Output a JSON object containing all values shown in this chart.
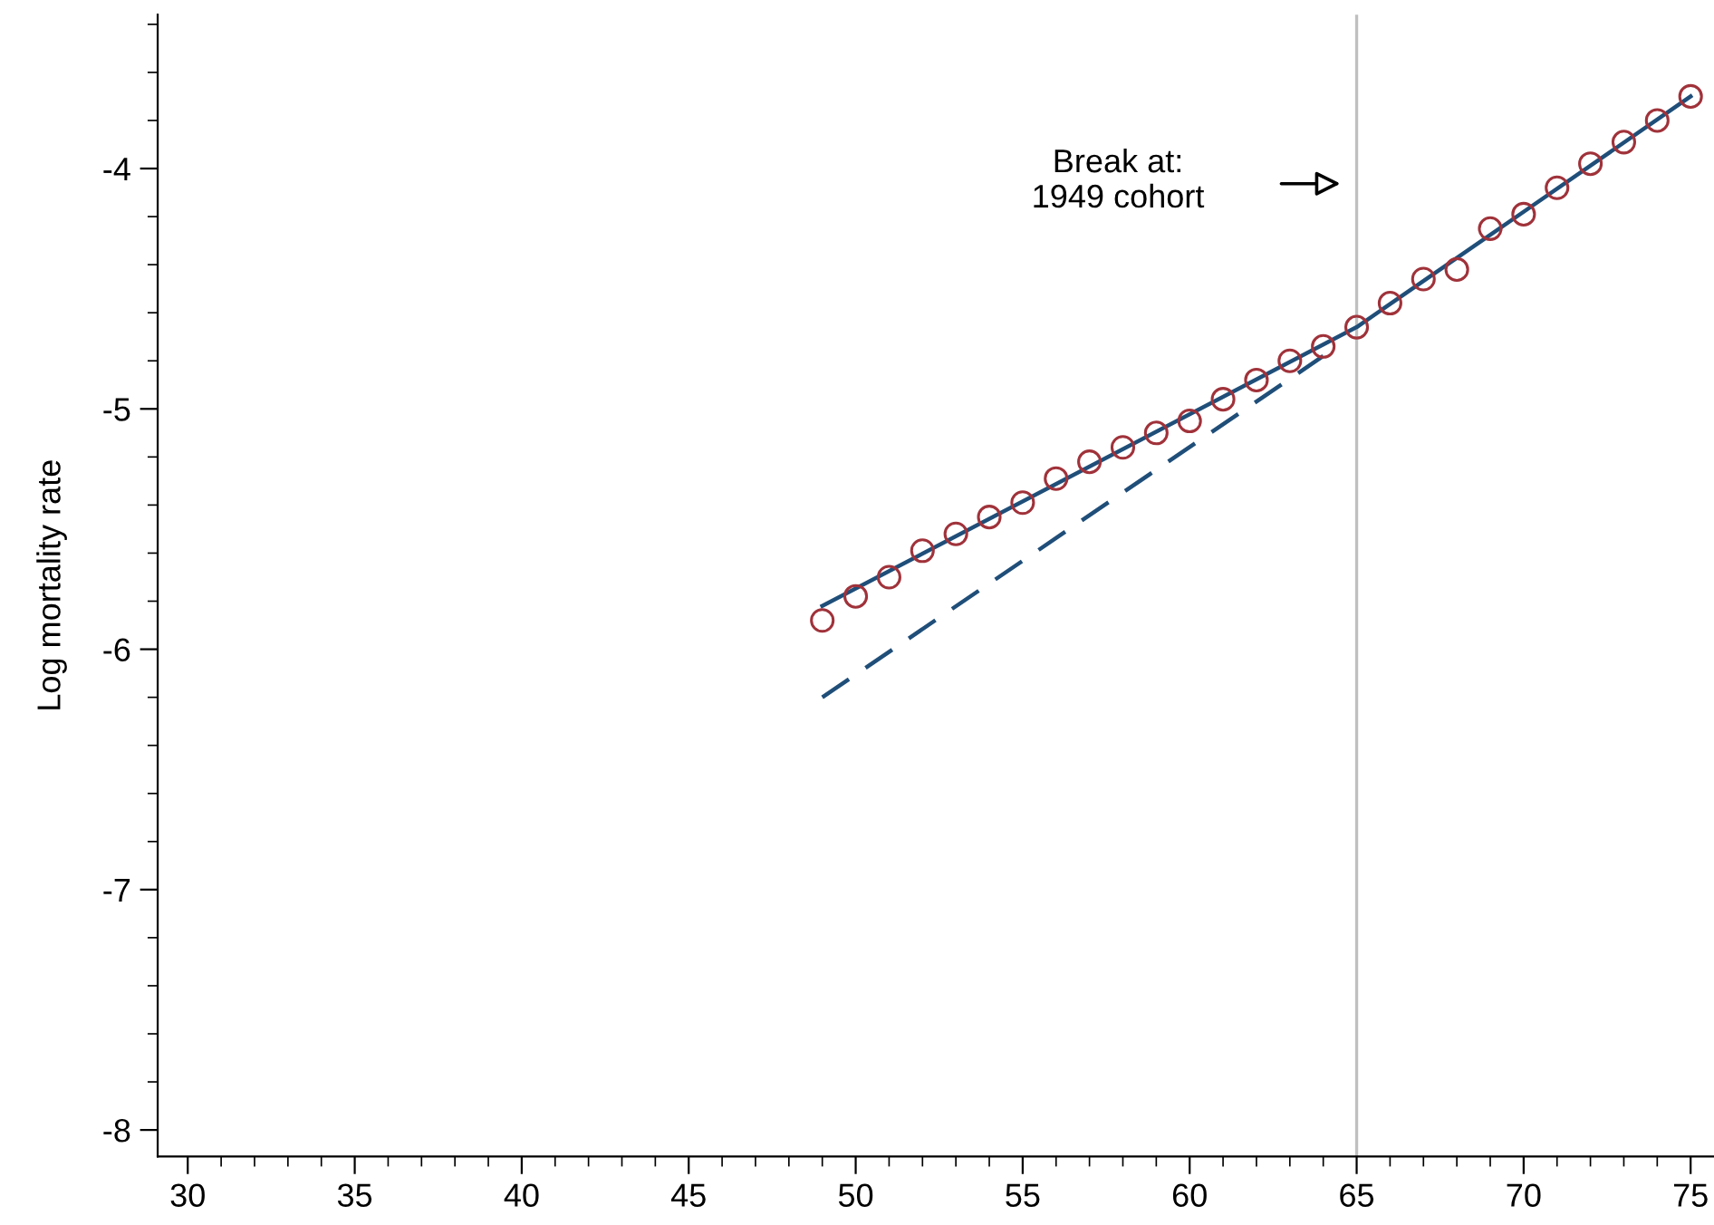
{
  "chart_data": {
    "type": "scatter",
    "ylabel": "Log mortality rate",
    "xlim": [
      29.1,
      75.7
    ],
    "ylim": [
      -8.11,
      -3.36
    ],
    "xticks": [
      30,
      35,
      40,
      45,
      50,
      55,
      60,
      65,
      70,
      75
    ],
    "yticks": [
      {
        "value": -8,
        "label": "-8"
      },
      {
        "value": -7,
        "label": "-7"
      },
      {
        "value": -6,
        "label": "-6"
      },
      {
        "value": -5,
        "label": "-5"
      },
      {
        "value": -4,
        "label": "-4"
      }
    ],
    "grid": false,
    "legend": false,
    "series": [
      {
        "color": "#a0323a",
        "marker": "circle",
        "x": [
          49,
          50,
          51,
          52,
          53,
          54,
          55,
          56,
          57,
          58,
          59,
          60,
          61,
          62,
          63,
          64,
          65,
          66,
          67,
          68,
          69,
          70,
          71,
          72,
          73,
          74,
          75
        ],
        "values": [
          -5.88,
          -5.78,
          -5.7,
          -5.59,
          -5.52,
          -5.45,
          -5.39,
          -5.29,
          -5.22,
          -5.16,
          -5.1,
          -5.05,
          -4.96,
          -4.88,
          -4.8,
          -4.74,
          -4.66,
          -4.56,
          -4.46,
          -4.42,
          -4.25,
          -4.19,
          -4.08,
          -3.98,
          -3.89,
          -3.8,
          -3.7
        ]
      },
      {
        "type": "line",
        "color": "#1f4e79",
        "line_style": "solid",
        "x": [
          49,
          65,
          70,
          75
        ],
        "values": [
          -5.82,
          -4.66,
          -4.18,
          -3.7
        ]
      },
      {
        "type": "line",
        "color": "#1f4e79",
        "line_style": "dashed",
        "x": [
          49,
          64
        ],
        "values": [
          -6.2,
          -4.78
        ]
      }
    ],
    "ref_lines": [
      {
        "axis": "x",
        "value": 65,
        "color": "#c0c0c0"
      }
    ],
    "annotations": [
      "Break at:\n1949 cohort"
    ]
  }
}
